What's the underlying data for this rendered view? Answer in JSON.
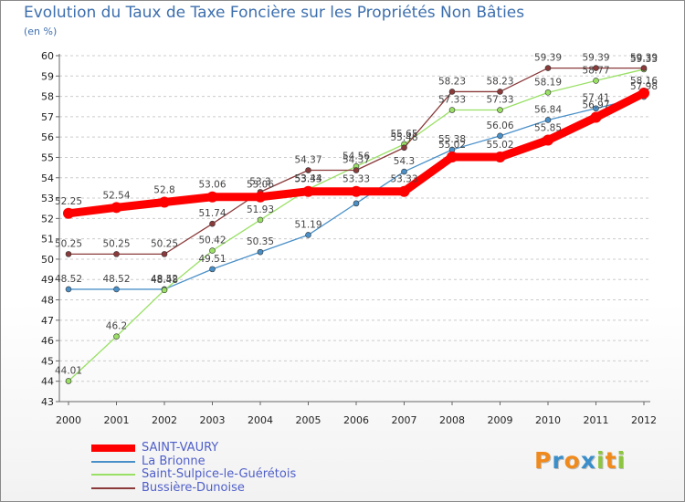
{
  "header": {
    "title": "Evolution du Taux de Taxe Foncière sur les Propriétés Non Bâties",
    "unit": "(en %)"
  },
  "chart_data": {
    "type": "line",
    "title": "Evolution du Taux de Taxe Foncière sur les Propriétés Non Bâties",
    "ylabel": "(en %)",
    "xlabel": "",
    "ylim": [
      43,
      60
    ],
    "yticks": [
      43,
      44,
      45,
      46,
      47,
      48,
      49,
      50,
      51,
      52,
      53,
      54,
      55,
      56,
      57,
      58,
      59,
      60
    ],
    "categories": [
      "2000",
      "2001",
      "2002",
      "2003",
      "2004",
      "2005",
      "2006",
      "2007",
      "2008",
      "2009",
      "2010",
      "2011",
      "2012"
    ],
    "grid": "horizontal",
    "series": [
      {
        "name": "SAINT-VAURY",
        "color": "#ff0000",
        "values": [
          52.25,
          52.54,
          52.8,
          53.06,
          53.06,
          53.33,
          53.33,
          53.33,
          55.02,
          55.02,
          55.85,
          56.97,
          58.16
        ],
        "labels": [
          "52.25",
          "52.54",
          "52.8",
          "53.06",
          "53.06",
          "53.33",
          "53.33",
          "53.33",
          "55.02",
          "55.02",
          "55.85",
          "56.97",
          "58.16"
        ]
      },
      {
        "name": "La Brionne",
        "color": "#4a90c8",
        "values": [
          48.52,
          48.52,
          48.52,
          49.51,
          50.35,
          51.19,
          52.74,
          54.3,
          55.38,
          56.06,
          56.84,
          57.41,
          57.98
        ],
        "labels": [
          "48.52",
          "48.52",
          "48.52",
          "49.51",
          "50.35",
          "51.19",
          "",
          "54.3",
          "55.38",
          "56.06",
          "56.84",
          "57.41",
          "57.98"
        ]
      },
      {
        "name": "Saint-Sulpice-le-Guérétois",
        "color": "#99e064",
        "values": [
          44.01,
          46.2,
          48.48,
          50.42,
          51.93,
          53.44,
          54.56,
          55.65,
          57.33,
          57.33,
          58.19,
          58.77,
          59.33
        ],
        "labels": [
          "44.01",
          "46.2",
          "48.48",
          "50.42",
          "51.93",
          "53.44",
          "54.56",
          "55.65",
          "57.33",
          "57.33",
          "58.19",
          "58.77",
          "59.33"
        ]
      },
      {
        "name": "Bussière-Dunoise",
        "color": "#8b3a3a",
        "values": [
          50.25,
          50.25,
          50.25,
          51.74,
          53.3,
          54.37,
          54.37,
          55.48,
          58.23,
          58.23,
          59.39,
          59.39,
          59.39
        ],
        "labels": [
          "50.25",
          "50.25",
          "50.25",
          "51.74",
          "53.3",
          "54.37",
          "54.37",
          "55.48",
          "58.23",
          "58.23",
          "59.39",
          "59.39",
          "59.39"
        ]
      }
    ]
  },
  "legend": {
    "items": [
      {
        "label": "SAINT-VAURY",
        "color": "#ff0000"
      },
      {
        "label": "La Brionne",
        "color": "#4a90c8"
      },
      {
        "label": "Saint-Sulpice-le-Guérétois",
        "color": "#99e064"
      },
      {
        "label": "Bussière-Dunoise",
        "color": "#8b3a3a"
      }
    ]
  },
  "logo": {
    "letters": [
      "P",
      "r",
      "o",
      "x",
      "i",
      "t",
      "i"
    ],
    "colors": [
      "#f08a1c",
      "#3a8ec9",
      "#f08a1c",
      "#3a8ec9",
      "#8cc63f",
      "#f08a1c",
      "#8cc63f"
    ]
  }
}
